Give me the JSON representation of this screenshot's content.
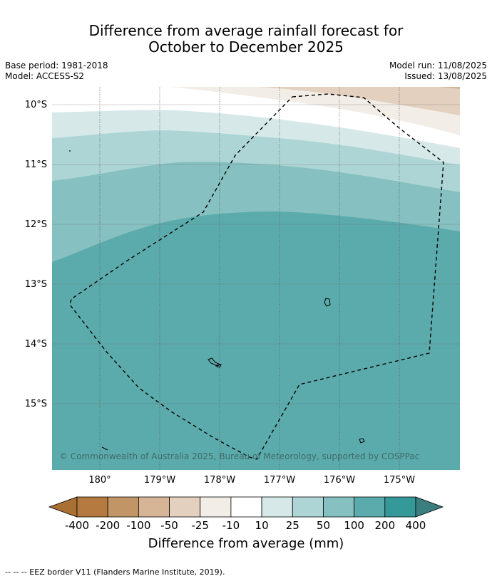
{
  "header": {
    "title_line1": "Difference from average rainfall forecast for",
    "title_line2": "October to December 2025",
    "base_period": "Base period: 1981-2018",
    "model": "Model: ACCESS-S2",
    "model_run": "Model run: 11/08/2025",
    "issued": "Issued: 13/08/2025"
  },
  "map": {
    "lat_labels": [
      "10°S",
      "11°S",
      "12°S",
      "13°S",
      "14°S",
      "15°S"
    ],
    "lon_labels": [
      "180°",
      "179°W",
      "178°W",
      "177°W",
      "176°W",
      "175°W"
    ],
    "copyright": "© Commonwealth of Australia 2025, Bureau of Meteorology, supported by COSPPac"
  },
  "colorbar": {
    "labels": [
      "-400",
      "-200",
      "-100",
      "-50",
      "-25",
      "-10",
      "10",
      "25",
      "50",
      "100",
      "200",
      "400"
    ],
    "colors": [
      "#a96f33",
      "#b47a3f",
      "#c29566",
      "#d6b496",
      "#e3d0bf",
      "#f2ede6",
      "#ffffff",
      "#d6e9e8",
      "#aed5d6",
      "#86c0c0",
      "#5cabac",
      "#35999a",
      "#3a7e7f"
    ],
    "title": "Difference from average (mm)"
  },
  "footnote": "--  --  -- EEZ border V11 (Flanders Marine Institute, 2019)."
}
